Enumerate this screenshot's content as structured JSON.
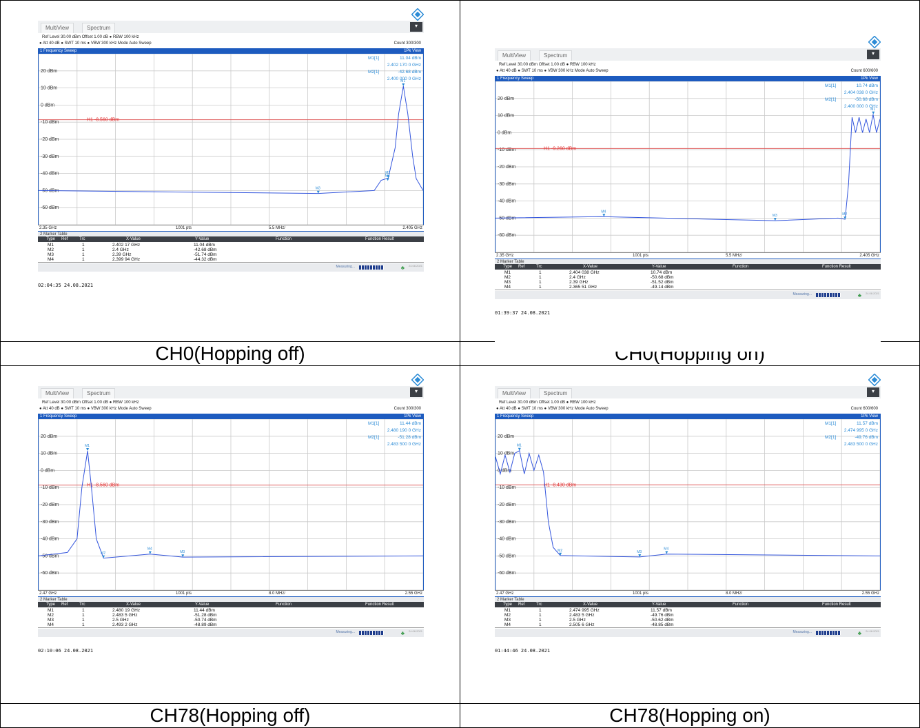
{
  "doc_cut_text": "ypo",
  "cells": [
    {
      "caption": "CH0(Hopping off)",
      "tabs": [
        "MultiView",
        "Spectrum"
      ],
      "ref_level": "Ref Level 30.00 dBm",
      "offset": "Offset 1.00 dB",
      "rbw": "RBW 100 kHz",
      "att": "Att",
      "att_val": "40 dB",
      "swt": "SWT 10 ms",
      "vbw": "VBW 300 kHz",
      "mode": "Mode Auto Sweep",
      "count": "Count 300/300",
      "sweep_title": "1 Frequency Sweep",
      "view": "1Pk View",
      "m1_label": "M1[1]",
      "m1_level": "11.04 dBm",
      "m1_freq": "2.402 170 0 GHz",
      "m2_label": "M2[1]",
      "m2_level": "-42.68 dBm",
      "m2_freq": "2.400 000 0 GHz",
      "y_labels": [
        "20 dBm",
        "10 dBm",
        "0 dBm",
        "-10 dBm",
        "-20 dBm",
        "-30 dBm",
        "-40 dBm",
        "-50 dBm",
        "-60 dBm"
      ],
      "h1": "H1 -8.560 dBm",
      "x_start": "2.35 GHz",
      "pts": "1001 pts",
      "span": "5.5 MHz/",
      "x_stop": "2.405 GHz",
      "table_title": "2 Marker Table",
      "table_headers": [
        "Type",
        "Ref",
        "Trc",
        "X-Value",
        "Y-Value",
        "Function",
        "Function Result"
      ],
      "rows": [
        {
          "type": "M1",
          "trc": "1",
          "x": "2.402 17 GHz",
          "y": "11.04 dBm"
        },
        {
          "type": "M2",
          "trc": "1",
          "x": "2.4 GHz",
          "y": "-42.68 dBm"
        },
        {
          "type": "M3",
          "trc": "1",
          "x": "2.39 GHz",
          "y": "-51.74 dBm"
        },
        {
          "type": "M4",
          "trc": "1",
          "x": "2.399 94 GHz",
          "y": "-44.32 dBm"
        }
      ],
      "measuring": "Measuring...",
      "status_date": "24.08.2021",
      "timestamp": "02:04:35  24.08.2021"
    },
    {
      "caption": "CH0(Hopping on)",
      "tabs": [
        "MultiView",
        "Spectrum"
      ],
      "ref_level": "Ref Level 30.00 dBm",
      "offset": "Offset 1.00 dB",
      "rbw": "RBW 100 kHz",
      "att": "Att",
      "att_val": "40 dB",
      "swt": "SWT 10 ms",
      "vbw": "VBW 300 kHz",
      "mode": "Mode Auto Sweep",
      "count": "Count 600/600",
      "sweep_title": "1 Frequency Sweep",
      "view": "1Pk View",
      "m1_label": "M1[1]",
      "m1_level": "10.74 dBm",
      "m1_freq": "2.404 038 0 GHz",
      "m2_label": "M2[1]",
      "m2_level": "-50.68 dBm",
      "m2_freq": "2.400 000 0 GHz",
      "y_labels": [
        "20 dBm",
        "10 dBm",
        "0 dBm",
        "-10 dBm",
        "-20 dBm",
        "-30 dBm",
        "-40 dBm",
        "-50 dBm",
        "-60 dBm"
      ],
      "h1": "H1 -9.260 dBm",
      "x_start": "2.35 GHz",
      "pts": "1001 pts",
      "span": "5.5 MHz/",
      "x_stop": "2.405 GHz",
      "table_title": "2 Marker Table",
      "table_headers": [
        "Type",
        "Ref",
        "Trc",
        "X-Value",
        "Y-Value",
        "Function",
        "Function Result"
      ],
      "rows": [
        {
          "type": "M1",
          "trc": "1",
          "x": "2.404 038 GHz",
          "y": "10.74 dBm"
        },
        {
          "type": "M2",
          "trc": "1",
          "x": "2.4 GHz",
          "y": "-50.68 dBm"
        },
        {
          "type": "M3",
          "trc": "1",
          "x": "2.39 GHz",
          "y": "-51.52 dBm"
        },
        {
          "type": "M4",
          "trc": "1",
          "x": "2.365 51 GHz",
          "y": "-49.14 dBm"
        }
      ],
      "measuring": "Measuring...",
      "status_date": "24.08.2021",
      "timestamp": "01:39:37  24.08.2021"
    },
    {
      "caption": "CH78(Hopping off)",
      "tabs": [
        "MultiView",
        "Spectrum"
      ],
      "ref_level": "Ref Level 30.00 dBm",
      "offset": "Offset 1.00 dB",
      "rbw": "RBW 100 kHz",
      "att": "Att",
      "att_val": "40 dB",
      "swt": "SWT 10 ms",
      "vbw": "VBW 300 kHz",
      "mode": "Mode Auto Sweep",
      "count": "Count 300/300",
      "sweep_title": "1 Frequency Sweep",
      "view": "1Pk View",
      "m1_label": "M1[1]",
      "m1_level": "11.44 dBm",
      "m1_freq": "2.480 190 0 GHz",
      "m2_label": "M2[1]",
      "m2_level": "-51.28 dBm",
      "m2_freq": "2.483 500 0 GHz",
      "y_labels": [
        "20 dBm",
        "10 dBm",
        "0 dBm",
        "-10 dBm",
        "-20 dBm",
        "-30 dBm",
        "-40 dBm",
        "-50 dBm",
        "-60 dBm"
      ],
      "h1": "H1 -8.560 dBm",
      "x_start": "2.47 GHz",
      "pts": "1001 pts",
      "span": "8.0 MHz/",
      "x_stop": "2.55 GHz",
      "table_title": "2 Marker Table",
      "table_headers": [
        "Type",
        "Ref",
        "Trc",
        "X-Value",
        "Y-Value",
        "Function",
        "Function Result"
      ],
      "rows": [
        {
          "type": "M1",
          "trc": "1",
          "x": "2.480 19 GHz",
          "y": "11.44 dBm"
        },
        {
          "type": "M2",
          "trc": "1",
          "x": "2.483 5 GHz",
          "y": "-51.28 dBm"
        },
        {
          "type": "M3",
          "trc": "1",
          "x": "2.5 GHz",
          "y": "-50.74 dBm"
        },
        {
          "type": "M4",
          "trc": "1",
          "x": "2.493 2 GHz",
          "y": "-48.89 dBm"
        }
      ],
      "measuring": "Measuring...",
      "status_date": "24.08.2021",
      "timestamp": "02:10:06  24.08.2021"
    },
    {
      "caption": "CH78(Hopping on)",
      "tabs": [
        "MultiView",
        "Spectrum"
      ],
      "ref_level": "Ref Level 30.00 dBm",
      "offset": "Offset 1.00 dB",
      "rbw": "RBW 100 kHz",
      "att": "Att",
      "att_val": "40 dB",
      "swt": "SWT 10 ms",
      "vbw": "VBW 300 kHz",
      "mode": "Mode Auto Sweep",
      "count": "Count 600/600",
      "sweep_title": "1 Frequency Sweep",
      "view": "1Pk View",
      "m1_label": "M1[1]",
      "m1_level": "11.57 dBm",
      "m1_freq": "2.474 995 0 GHz",
      "m2_label": "M2[1]",
      "m2_level": "-49.76 dBm",
      "m2_freq": "2.483 500 0 GHz",
      "y_labels": [
        "20 dBm",
        "10 dBm",
        "0 dBm",
        "-10 dBm",
        "-20 dBm",
        "-30 dBm",
        "-40 dBm",
        "-50 dBm",
        "-60 dBm"
      ],
      "h1": "H1 -8.430 dBm",
      "x_start": "2.47 GHz",
      "pts": "1001 pts",
      "span": "8.0 MHz/",
      "x_stop": "2.55 GHz",
      "table_title": "2 Marker Table",
      "table_headers": [
        "Type",
        "Ref",
        "Trc",
        "X-Value",
        "Y-Value",
        "Function",
        "Function Result"
      ],
      "rows": [
        {
          "type": "M1",
          "trc": "1",
          "x": "2.474 995 GHz",
          "y": "11.57 dBm"
        },
        {
          "type": "M2",
          "trc": "1",
          "x": "2.483 5 GHz",
          "y": "-49.76 dBm"
        },
        {
          "type": "M3",
          "trc": "1",
          "x": "2.5 GHz",
          "y": "-50.62 dBm"
        },
        {
          "type": "M4",
          "trc": "1",
          "x": "2.505 6 GHz",
          "y": "-48.85 dBm"
        }
      ],
      "measuring": "Measuring...",
      "status_date": "24.08.2021",
      "timestamp": "01:44:46  24.08.2021"
    }
  ],
  "chart_data": [
    {
      "type": "line",
      "title": "1 Frequency Sweep",
      "xlabel": "",
      "ylabel": "",
      "xlim": [
        2.35,
        2.405
      ],
      "ylim": [
        -70,
        30
      ],
      "threshold_dbm": -8.56,
      "series": [
        {
          "x": [
            2.35,
            2.39,
            2.398,
            2.399,
            2.4,
            2.401,
            2.4015,
            2.40217,
            2.4028,
            2.4035,
            2.404,
            2.405
          ],
          "y": [
            -50,
            -51.7,
            -50,
            -44,
            -42.7,
            -25,
            -5,
            11.04,
            -5,
            -30,
            -43,
            -50
          ]
        }
      ],
      "markers": [
        {
          "name": "M1",
          "x": 2.40217,
          "y": 11.04
        },
        {
          "name": "M2",
          "x": 2.4,
          "y": -42.68
        },
        {
          "name": "M3",
          "x": 2.39,
          "y": -51.74
        },
        {
          "name": "M4",
          "x": 2.39994,
          "y": -44.32
        }
      ]
    },
    {
      "type": "line",
      "title": "1 Frequency Sweep",
      "xlabel": "",
      "ylabel": "",
      "xlim": [
        2.35,
        2.405
      ],
      "ylim": [
        -70,
        30
      ],
      "threshold_dbm": -9.26,
      "series": [
        {
          "x": [
            2.35,
            2.365,
            2.39,
            2.399,
            2.4,
            2.4005,
            2.401,
            2.4015,
            2.402,
            2.4025,
            2.403,
            2.4035,
            2.404,
            2.4045,
            2.405
          ],
          "y": [
            -50,
            -49.1,
            -51.5,
            -50,
            -50.7,
            -30,
            9,
            0,
            9,
            0,
            8,
            0,
            10.74,
            0,
            8
          ]
        }
      ],
      "markers": [
        {
          "name": "M1",
          "x": 2.404038,
          "y": 10.74
        },
        {
          "name": "M2",
          "x": 2.4,
          "y": -50.68
        },
        {
          "name": "M3",
          "x": 2.39,
          "y": -51.52
        },
        {
          "name": "M4",
          "x": 2.36551,
          "y": -49.14
        }
      ]
    },
    {
      "type": "line",
      "title": "1 Frequency Sweep",
      "xlabel": "",
      "ylabel": "",
      "xlim": [
        2.47,
        2.55
      ],
      "ylim": [
        -70,
        30
      ],
      "threshold_dbm": -8.56,
      "series": [
        {
          "x": [
            2.47,
            2.476,
            2.478,
            2.479,
            2.48019,
            2.481,
            2.482,
            2.4835,
            2.4932,
            2.5,
            2.55
          ],
          "y": [
            -50,
            -48,
            -40,
            -10,
            11.44,
            -10,
            -40,
            -51.3,
            -48.9,
            -50.7,
            -50
          ]
        }
      ],
      "markers": [
        {
          "name": "M1",
          "x": 2.48019,
          "y": 11.44
        },
        {
          "name": "M2",
          "x": 2.4835,
          "y": -51.28
        },
        {
          "name": "M3",
          "x": 2.5,
          "y": -50.74
        },
        {
          "name": "M4",
          "x": 2.4932,
          "y": -48.89
        }
      ]
    },
    {
      "type": "line",
      "title": "1 Frequency Sweep",
      "xlabel": "",
      "ylabel": "",
      "xlim": [
        2.47,
        2.55
      ],
      "ylim": [
        -70,
        30
      ],
      "threshold_dbm": -8.43,
      "series": [
        {
          "x": [
            2.47,
            2.471,
            2.472,
            2.473,
            2.474,
            2.475,
            2.476,
            2.477,
            2.478,
            2.479,
            2.48,
            2.481,
            2.482,
            2.4835,
            2.5,
            2.5056,
            2.55
          ],
          "y": [
            8,
            -2,
            9,
            -1,
            10,
            11.57,
            -2,
            10,
            0,
            9,
            -1,
            -30,
            -45,
            -49.8,
            -50.6,
            -48.9,
            -50
          ]
        }
      ],
      "markers": [
        {
          "name": "M1",
          "x": 2.474995,
          "y": 11.57
        },
        {
          "name": "M2",
          "x": 2.4835,
          "y": -49.76
        },
        {
          "name": "M3",
          "x": 2.5,
          "y": -50.62
        },
        {
          "name": "M4",
          "x": 2.5056,
          "y": -48.85
        }
      ]
    }
  ]
}
